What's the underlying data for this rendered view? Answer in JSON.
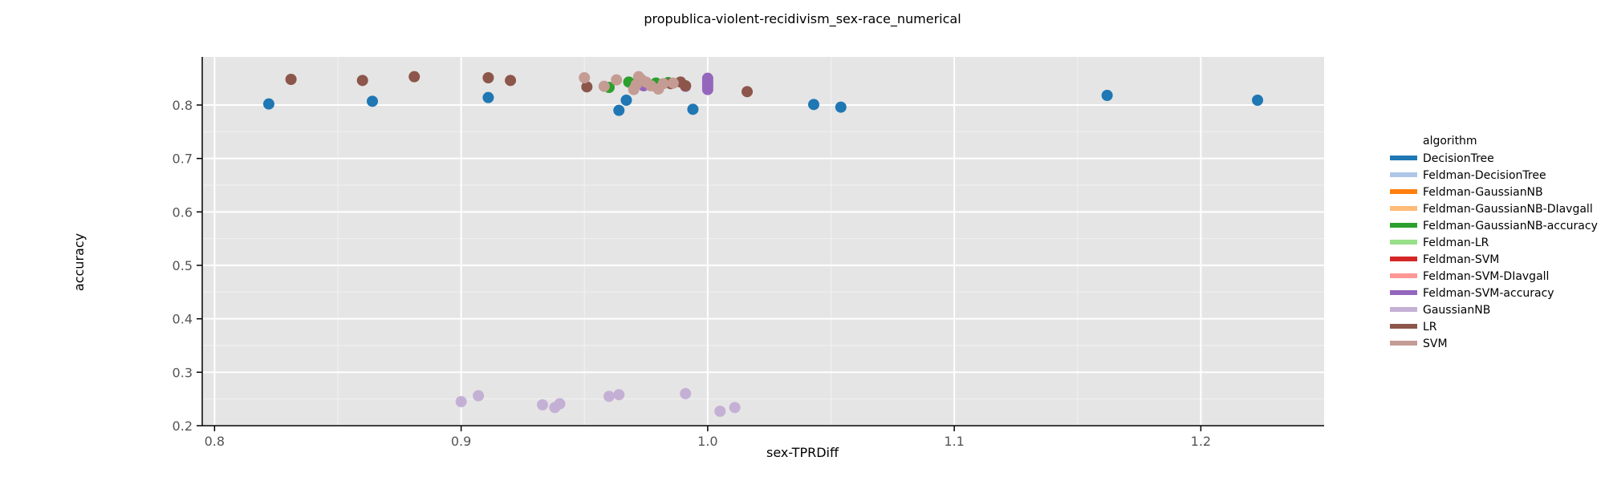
{
  "chart_data": {
    "type": "scatter",
    "title": "propublica-violent-recidivism_sex-race_numerical",
    "xlabel": "sex-TPRDiff",
    "ylabel": "accuracy",
    "xlim": [
      0.795,
      1.25
    ],
    "ylim": [
      0.2,
      0.89
    ],
    "xticks": [
      0.8,
      0.9,
      1.0,
      1.1,
      1.2
    ],
    "xtick_labels": [
      "0.8",
      "0.9",
      "1.0",
      "1.1",
      "1.2"
    ],
    "yticks": [
      0.2,
      0.3,
      0.4,
      0.5,
      0.6,
      0.7,
      0.8
    ],
    "ytick_labels": [
      "0.2",
      "0.3",
      "0.4",
      "0.5",
      "0.6",
      "0.7",
      "0.8"
    ],
    "grid": true,
    "legend_position": "right",
    "legend_title": "algorithm",
    "colors": {
      "background": "#e5e5e5",
      "grid_major": "#ffffff",
      "grid_minor": "#f2f2f2"
    },
    "series": [
      {
        "name": "DecisionTree",
        "color": "#1f77b4",
        "points": [
          [
            0.822,
            0.802
          ],
          [
            0.864,
            0.807
          ],
          [
            0.911,
            0.814
          ],
          [
            0.964,
            0.79
          ],
          [
            0.967,
            0.809
          ],
          [
            0.994,
            0.792
          ],
          [
            1.043,
            0.801
          ],
          [
            1.054,
            0.796
          ],
          [
            1.162,
            0.818
          ],
          [
            1.223,
            0.809
          ]
        ]
      },
      {
        "name": "Feldman-DecisionTree",
        "color": "#aec7e8",
        "points": []
      },
      {
        "name": "Feldman-GaussianNB",
        "color": "#ff7f0e",
        "points": []
      },
      {
        "name": "Feldman-GaussianNB-DIavgall",
        "color": "#ffbb78",
        "points": []
      },
      {
        "name": "Feldman-GaussianNB-accuracy",
        "color": "#2ca02c",
        "points": [
          [
            0.96,
            0.833
          ],
          [
            0.968,
            0.843
          ],
          [
            0.979,
            0.841
          ],
          [
            0.984,
            0.842
          ]
        ]
      },
      {
        "name": "Feldman-LR",
        "color": "#98df8a",
        "points": []
      },
      {
        "name": "Feldman-SVM",
        "color": "#d62728",
        "points": []
      },
      {
        "name": "Feldman-SVM-DIavgall",
        "color": "#ff9896",
        "points": []
      },
      {
        "name": "Feldman-SVM-accuracy",
        "color": "#9467bd",
        "points": [
          [
            0.974,
            0.836
          ],
          [
            0.991,
            0.835
          ],
          [
            1.0,
            0.829
          ],
          [
            1.0,
            0.835
          ],
          [
            1.0,
            0.84
          ],
          [
            1.0,
            0.845
          ],
          [
            1.0,
            0.85
          ]
        ]
      },
      {
        "name": "GaussianNB",
        "color": "#c5b0d5",
        "points": [
          [
            0.9,
            0.245
          ],
          [
            0.907,
            0.256
          ],
          [
            0.933,
            0.239
          ],
          [
            0.938,
            0.234
          ],
          [
            0.94,
            0.241
          ],
          [
            0.96,
            0.255
          ],
          [
            0.964,
            0.258
          ],
          [
            0.991,
            0.26
          ],
          [
            1.005,
            0.227
          ],
          [
            1.011,
            0.234
          ]
        ]
      },
      {
        "name": "LR",
        "color": "#8c564b",
        "points": [
          [
            0.831,
            0.848
          ],
          [
            0.86,
            0.846
          ],
          [
            0.881,
            0.853
          ],
          [
            0.911,
            0.851
          ],
          [
            0.92,
            0.846
          ],
          [
            0.951,
            0.834
          ],
          [
            0.985,
            0.84
          ],
          [
            0.989,
            0.843
          ],
          [
            0.991,
            0.836
          ],
          [
            1.016,
            0.825
          ]
        ]
      },
      {
        "name": "SVM",
        "color": "#c49c94",
        "points": [
          [
            0.95,
            0.851
          ],
          [
            0.958,
            0.835
          ],
          [
            0.963,
            0.847
          ],
          [
            0.97,
            0.829
          ],
          [
            0.971,
            0.838
          ],
          [
            0.972,
            0.853
          ],
          [
            0.973,
            0.848
          ],
          [
            0.975,
            0.843
          ],
          [
            0.977,
            0.836
          ],
          [
            0.98,
            0.83
          ],
          [
            0.982,
            0.84
          ],
          [
            0.986,
            0.841
          ]
        ]
      }
    ]
  }
}
